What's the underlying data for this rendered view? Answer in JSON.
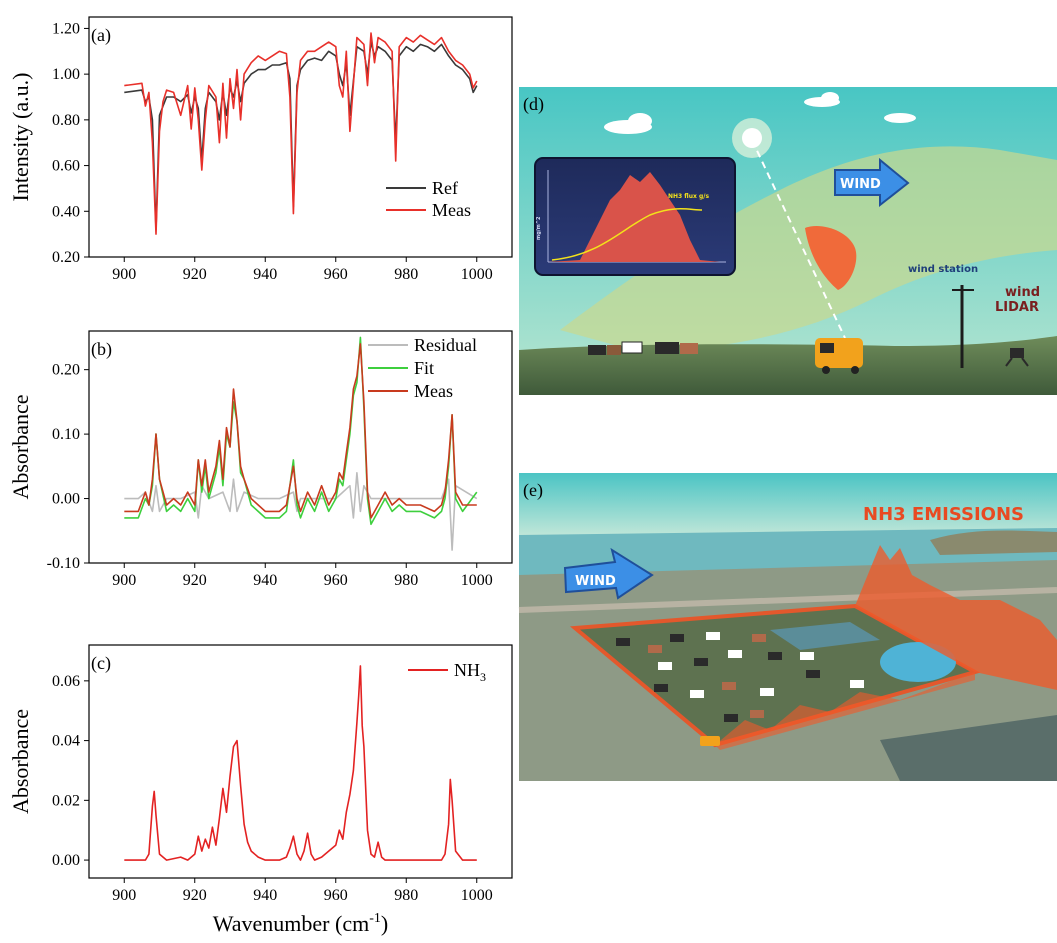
{
  "chart_data": [
    {
      "panel": "(a)",
      "type": "line",
      "ylabel": "Intensity (a.u.)",
      "xlabel": "",
      "xlim": [
        890,
        1010
      ],
      "ylim": [
        0.2,
        1.25
      ],
      "xticks": [
        900,
        920,
        940,
        960,
        980,
        1000
      ],
      "yticks": [
        0.2,
        0.4,
        0.6,
        0.8,
        1.0,
        1.2
      ],
      "ytick_labels": [
        "0.20",
        "0.40",
        "0.60",
        "0.80",
        "1.00",
        "1.20"
      ],
      "legend_position": "bottom-right",
      "series": [
        {
          "name": "Ref",
          "color": "#3a3a3a",
          "x": [
            900,
            905,
            906,
            907,
            908,
            909,
            910,
            911,
            912,
            914,
            916,
            918,
            919,
            920,
            921,
            922,
            923,
            924,
            926,
            927,
            928,
            929,
            930,
            931,
            932,
            933,
            934,
            936,
            938,
            940,
            942,
            944,
            946,
            947,
            948,
            949,
            950,
            952,
            954,
            956,
            958,
            960,
            961,
            962,
            963,
            964,
            966,
            968,
            969,
            970,
            971,
            972,
            974,
            976,
            977,
            978,
            980,
            982,
            984,
            986,
            988,
            990,
            992,
            994,
            996,
            998,
            999,
            1000
          ],
          "y": [
            0.92,
            0.93,
            0.88,
            0.9,
            0.8,
            0.32,
            0.82,
            0.86,
            0.9,
            0.9,
            0.88,
            0.91,
            0.83,
            0.9,
            0.85,
            0.62,
            0.85,
            0.92,
            0.88,
            0.8,
            0.92,
            0.82,
            0.94,
            0.9,
            0.97,
            0.88,
            0.96,
            1.0,
            1.02,
            1.02,
            1.04,
            1.04,
            1.05,
            0.98,
            0.42,
            0.95,
            1.02,
            1.06,
            1.07,
            1.06,
            1.1,
            1.08,
            1.0,
            0.95,
            1.05,
            0.82,
            1.12,
            1.1,
            1.0,
            1.14,
            1.08,
            1.12,
            1.1,
            1.06,
            0.7,
            1.08,
            1.12,
            1.1,
            1.13,
            1.12,
            1.1,
            1.13,
            1.08,
            1.04,
            1.02,
            0.98,
            0.92,
            0.95
          ]
        },
        {
          "name": "Meas",
          "color": "#e8302a",
          "x": [
            900,
            905,
            906,
            907,
            908,
            909,
            910,
            911,
            912,
            914,
            916,
            918,
            919,
            920,
            921,
            922,
            923,
            924,
            926,
            927,
            928,
            929,
            930,
            931,
            932,
            933,
            934,
            936,
            938,
            940,
            942,
            944,
            946,
            947,
            948,
            949,
            950,
            952,
            954,
            956,
            958,
            960,
            961,
            962,
            963,
            964,
            966,
            968,
            969,
            970,
            971,
            972,
            974,
            976,
            977,
            978,
            980,
            982,
            984,
            986,
            988,
            990,
            992,
            994,
            996,
            998,
            999,
            1000
          ],
          "y": [
            0.95,
            0.96,
            0.86,
            0.92,
            0.7,
            0.3,
            0.75,
            0.88,
            0.93,
            0.92,
            0.82,
            0.95,
            0.76,
            0.94,
            0.8,
            0.58,
            0.8,
            0.95,
            0.9,
            0.7,
            0.96,
            0.72,
            0.98,
            0.85,
            1.02,
            0.8,
            1.0,
            1.05,
            1.08,
            1.06,
            1.08,
            1.1,
            1.09,
            0.9,
            0.39,
            0.92,
            1.06,
            1.1,
            1.1,
            1.12,
            1.14,
            1.12,
            0.95,
            0.9,
            1.1,
            0.75,
            1.16,
            1.13,
            0.95,
            1.18,
            1.05,
            1.16,
            1.14,
            1.1,
            0.62,
            1.12,
            1.16,
            1.14,
            1.17,
            1.15,
            1.13,
            1.16,
            1.1,
            1.06,
            1.04,
            1.0,
            0.94,
            0.97
          ]
        }
      ]
    },
    {
      "panel": "(b)",
      "type": "line",
      "ylabel": "Absorbance",
      "xlabel": "",
      "xlim": [
        890,
        1010
      ],
      "ylim": [
        -0.1,
        0.26
      ],
      "xticks": [
        900,
        920,
        940,
        960,
        980,
        1000
      ],
      "yticks": [
        -0.1,
        0.0,
        0.1,
        0.2
      ],
      "ytick_labels": [
        "-0.10",
        "0.00",
        "0.10",
        "0.20"
      ],
      "legend_position": "top-right",
      "series": [
        {
          "name": "Residual",
          "color": "#bcbcbc",
          "x": [
            900,
            904,
            906,
            908,
            909,
            910,
            912,
            916,
            920,
            921,
            922,
            924,
            928,
            930,
            931,
            932,
            934,
            938,
            944,
            948,
            949,
            950,
            956,
            960,
            964,
            965,
            966,
            967,
            968,
            970,
            976,
            984,
            990,
            992,
            993,
            994,
            1000
          ],
          "y": [
            0.0,
            0.0,
            0.01,
            -0.02,
            0.02,
            -0.02,
            0.0,
            0.0,
            0.01,
            -0.03,
            0.02,
            0.0,
            0.01,
            -0.02,
            0.03,
            -0.02,
            0.01,
            0.0,
            0.0,
            0.01,
            -0.02,
            0.0,
            0.0,
            0.0,
            0.02,
            -0.03,
            0.04,
            -0.02,
            0.02,
            0.0,
            0.0,
            0.0,
            0.0,
            0.03,
            -0.08,
            0.02,
            0.0
          ]
        },
        {
          "name": "Fit",
          "color": "#3ecf3e",
          "x": [
            900,
            904,
            906,
            907,
            908,
            909,
            910,
            912,
            914,
            916,
            918,
            920,
            921,
            922,
            923,
            924,
            926,
            927,
            928,
            929,
            930,
            931,
            932,
            933,
            934,
            936,
            938,
            940,
            944,
            946,
            948,
            949,
            950,
            952,
            954,
            956,
            958,
            960,
            961,
            962,
            963,
            964,
            965,
            966,
            967,
            968,
            969,
            970,
            972,
            974,
            976,
            978,
            980,
            984,
            988,
            990,
            991,
            992,
            993,
            994,
            996,
            1000
          ],
          "y": [
            -0.03,
            -0.03,
            0.0,
            -0.01,
            0.02,
            0.1,
            0.03,
            -0.02,
            -0.01,
            -0.02,
            0.0,
            -0.02,
            0.06,
            0.01,
            0.05,
            0.0,
            0.04,
            0.08,
            0.02,
            0.1,
            0.08,
            0.15,
            0.12,
            0.04,
            0.03,
            -0.01,
            -0.02,
            -0.03,
            -0.03,
            -0.02,
            0.06,
            -0.01,
            -0.03,
            0.0,
            -0.02,
            0.01,
            -0.02,
            0.0,
            0.03,
            0.02,
            0.06,
            0.1,
            0.16,
            0.18,
            0.25,
            0.14,
            0.0,
            -0.04,
            -0.02,
            0.0,
            -0.02,
            -0.01,
            -0.02,
            -0.02,
            -0.03,
            -0.02,
            0.0,
            0.05,
            0.13,
            0.0,
            -0.02,
            0.01
          ]
        },
        {
          "name": "Meas",
          "color": "#c83a1e",
          "x": [
            900,
            904,
            906,
            907,
            908,
            909,
            910,
            912,
            914,
            916,
            918,
            920,
            921,
            922,
            923,
            924,
            926,
            927,
            928,
            929,
            930,
            931,
            932,
            933,
            934,
            936,
            938,
            940,
            944,
            946,
            948,
            949,
            950,
            952,
            954,
            956,
            958,
            960,
            961,
            962,
            963,
            964,
            965,
            966,
            967,
            968,
            969,
            970,
            972,
            974,
            976,
            978,
            980,
            984,
            988,
            990,
            991,
            992,
            993,
            994,
            996,
            1000
          ],
          "y": [
            -0.02,
            -0.02,
            0.01,
            -0.01,
            0.03,
            0.1,
            0.03,
            -0.01,
            0.0,
            -0.01,
            0.01,
            -0.01,
            0.06,
            0.02,
            0.06,
            0.01,
            0.05,
            0.09,
            0.03,
            0.11,
            0.08,
            0.17,
            0.12,
            0.05,
            0.03,
            0.0,
            -0.01,
            -0.02,
            -0.02,
            -0.01,
            0.05,
            0.0,
            -0.02,
            0.01,
            -0.01,
            0.02,
            -0.01,
            0.01,
            0.04,
            0.03,
            0.07,
            0.11,
            0.17,
            0.19,
            0.24,
            0.15,
            0.01,
            -0.03,
            -0.01,
            0.01,
            -0.01,
            0.0,
            -0.01,
            -0.01,
            -0.02,
            -0.01,
            0.01,
            0.06,
            0.13,
            0.01,
            -0.01,
            -0.01
          ]
        }
      ]
    },
    {
      "panel": "(c)",
      "type": "line",
      "ylabel": "Absorbance",
      "xlabel": "Wavenumber (cm",
      "xlabel_sup": "-1",
      "xlabel_end": ")",
      "xlim": [
        890,
        1010
      ],
      "ylim": [
        -0.006,
        0.072
      ],
      "xticks": [
        900,
        920,
        940,
        960,
        980,
        1000
      ],
      "yticks": [
        0.0,
        0.02,
        0.04,
        0.06
      ],
      "ytick_labels": [
        "0.00",
        "0.02",
        "0.04",
        "0.06"
      ],
      "legend_position": "top-right",
      "series": [
        {
          "name": "NH",
          "name_sub": "3",
          "color": "#e32222",
          "x": [
            900,
            906,
            907,
            908,
            908.5,
            909,
            910,
            912,
            916,
            918,
            920,
            921,
            922,
            923,
            924,
            925,
            926,
            927,
            928,
            929,
            930,
            931,
            932,
            933,
            934,
            935,
            936,
            938,
            940,
            944,
            946,
            947,
            948,
            949,
            950,
            951,
            952,
            953,
            954,
            956,
            958,
            960,
            961,
            962,
            963,
            964,
            965,
            966,
            966.5,
            967,
            967.5,
            968,
            969,
            970,
            971,
            972,
            973,
            974,
            976,
            980,
            988,
            990,
            991,
            992,
            992.5,
            993,
            994,
            996,
            1000
          ],
          "y": [
            0.0,
            0.0,
            0.002,
            0.018,
            0.023,
            0.015,
            0.002,
            0.0,
            0.001,
            0.0,
            0.002,
            0.008,
            0.003,
            0.007,
            0.004,
            0.011,
            0.005,
            0.014,
            0.024,
            0.016,
            0.028,
            0.038,
            0.04,
            0.025,
            0.012,
            0.006,
            0.003,
            0.001,
            0.0,
            0.0,
            0.001,
            0.004,
            0.008,
            0.002,
            0.0,
            0.003,
            0.009,
            0.002,
            0.0,
            0.001,
            0.003,
            0.005,
            0.01,
            0.007,
            0.016,
            0.022,
            0.03,
            0.046,
            0.055,
            0.065,
            0.045,
            0.038,
            0.01,
            0.002,
            0.001,
            0.006,
            0.001,
            0.0,
            0.0,
            0.0,
            0.0,
            0.0,
            0.002,
            0.012,
            0.027,
            0.02,
            0.003,
            0.0,
            0.0
          ]
        }
      ]
    }
  ],
  "panel_d": {
    "label": "(d)",
    "wind_label": "WIND",
    "inset_series_label": "NH3 flux g/s",
    "inset_axis_label": "mg/m^2",
    "wind_station_label": "wind station",
    "lidar_label_1": "wind",
    "lidar_label_2": "LIDAR"
  },
  "panel_e": {
    "label": "(e)",
    "title": "NH3 EMISSIONS",
    "wind_label": "WIND"
  }
}
